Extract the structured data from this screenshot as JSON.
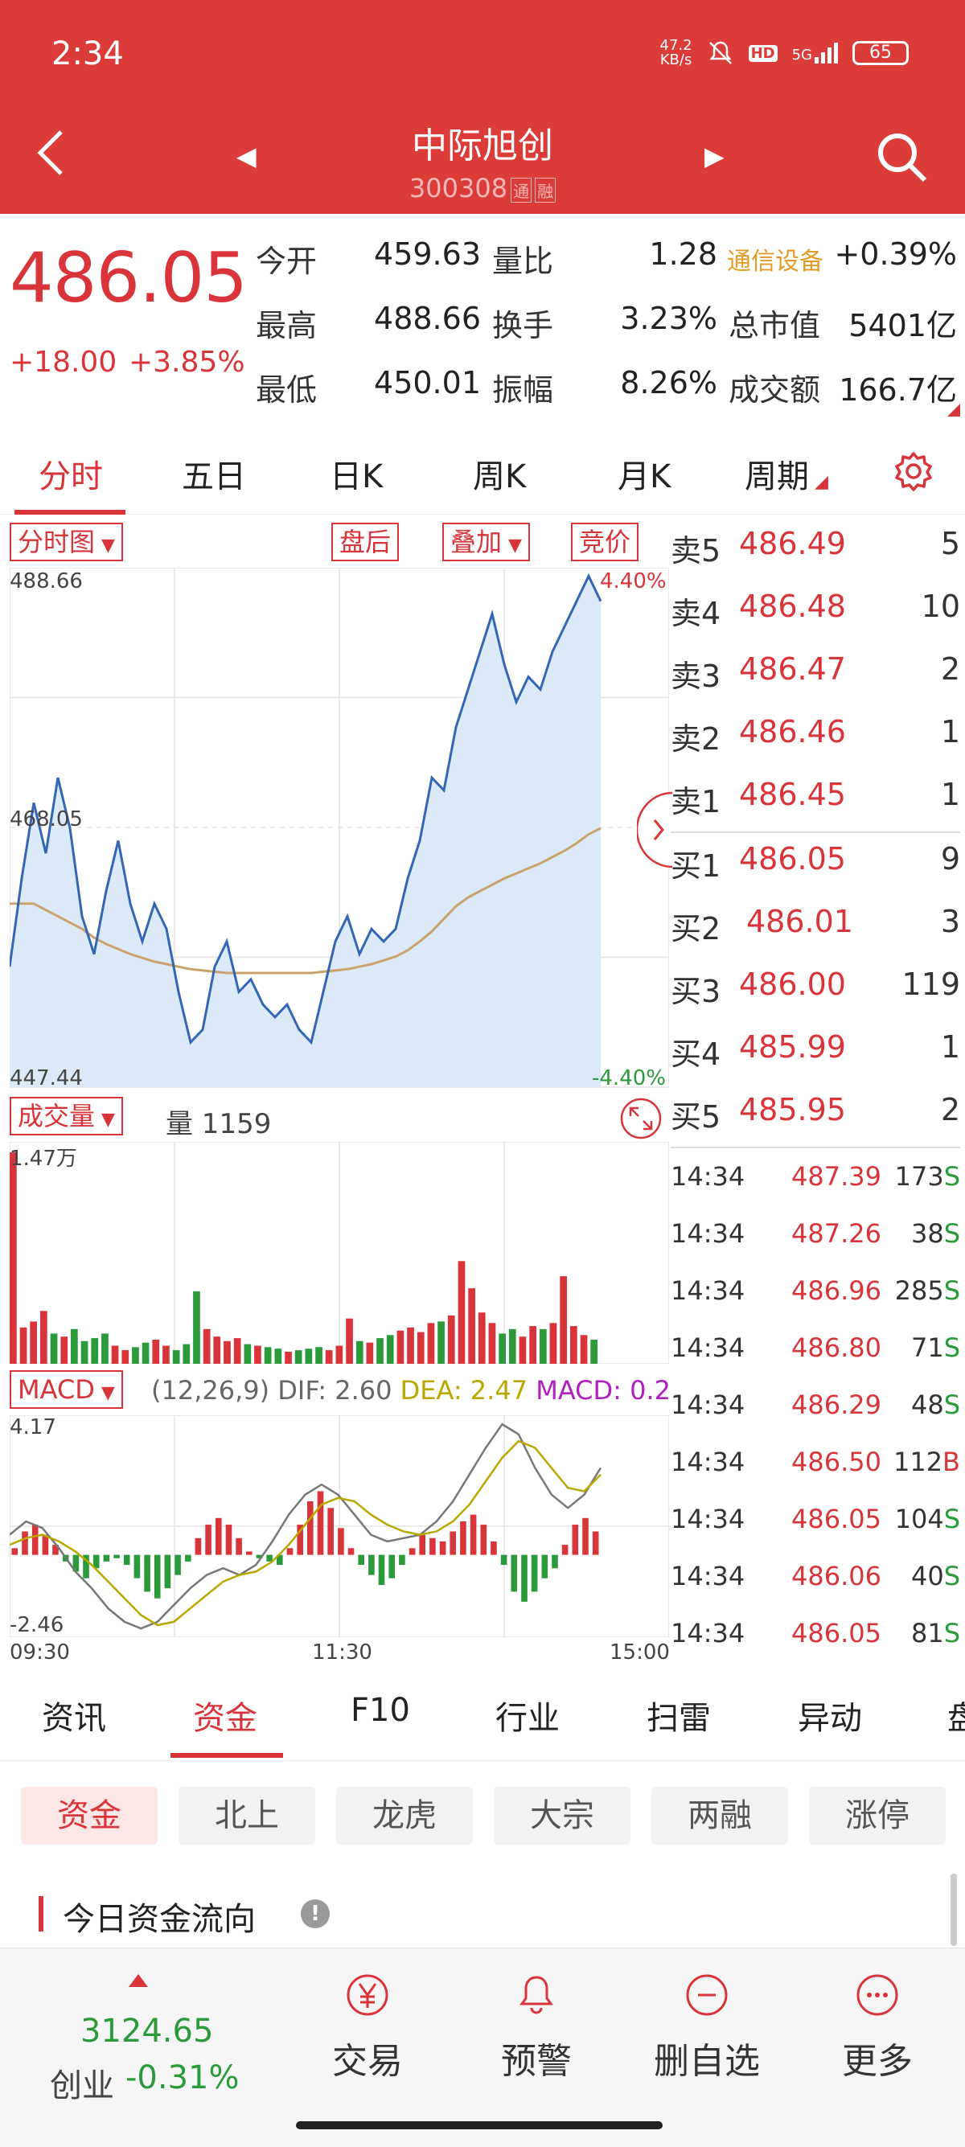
{
  "status_bar": {
    "time": "2:34",
    "speed": "47.2\nKB/s",
    "hd": "HD",
    "network": "5G",
    "battery": "65"
  },
  "header": {
    "name": "中际旭创",
    "code": "300308",
    "code_tags": [
      "通",
      "融"
    ]
  },
  "quote": {
    "price": "486.05",
    "change_abs": "+18.00",
    "change_pct": "+3.85%",
    "industry": "通信设备",
    "industry_change": "+0.39%",
    "rows": [
      {
        "l1": "今开",
        "v1": "459.63",
        "l2": "量比",
        "v2": "1.28"
      },
      {
        "l1": "最高",
        "v1": "488.66",
        "l2": "换手",
        "v2": "3.23%",
        "l3": "总市值",
        "v3": "5401亿"
      },
      {
        "l1": "最低",
        "v1": "450.01",
        "l2": "振幅",
        "v2": "8.26%",
        "l3": "成交额",
        "v3": "166.7亿"
      }
    ]
  },
  "period_tabs": [
    "分时",
    "五日",
    "日K",
    "周K",
    "月K",
    "周期"
  ],
  "chart_controls": {
    "chart_type": "分时图",
    "after_hours": "盘后",
    "overlay": "叠加",
    "auction": "竞价",
    "volume": "成交量",
    "volume_value": "量 1159",
    "macd": "MACD",
    "macd_params": "(12,26,9)",
    "dif": "DIF: 2.60",
    "dea": "DEA: 2.47",
    "macd_val": "MACD: 0.2"
  },
  "colors": {
    "accent": "#dc3c39",
    "up": "#d9343a",
    "down": "#2a9a3a",
    "avg_line": "#c8a46c",
    "dea": "#b8a800",
    "macd_text": "#b020c0"
  },
  "chart_data": [
    {
      "type": "line",
      "title": "分时图",
      "y_ticks": {
        "top": "488.66",
        "mid": "468.05",
        "bottom": "447.44"
      },
      "pct_ticks": {
        "top": "4.40%",
        "bottom": "-4.40%"
      },
      "x_ticks": [
        "09:30",
        "11:30",
        "15:00"
      ],
      "ylim": [
        447.44,
        488.66
      ],
      "series": [
        {
          "values": [
            457,
            464,
            470,
            466,
            472,
            468,
            461,
            458,
            463,
            467,
            462,
            459,
            462,
            460,
            455,
            451,
            452,
            457,
            459,
            455,
            456,
            454,
            453,
            454,
            452,
            451,
            455,
            459,
            461,
            458,
            460,
            459,
            460,
            464,
            467,
            472,
            471,
            476,
            479,
            482,
            485,
            481,
            478,
            480,
            479,
            482,
            484,
            486,
            488,
            486
          ]
        },
        {
          "values": [
            462,
            462,
            462,
            461.5,
            461,
            460.5,
            460,
            459.3,
            458.8,
            458.4,
            458,
            457.7,
            457.4,
            457.2,
            457,
            456.8,
            456.7,
            456.6,
            456.5,
            456.5,
            456.5,
            456.5,
            456.5,
            456.5,
            456.5,
            456.5,
            456.6,
            456.7,
            456.8,
            457,
            457.2,
            457.5,
            457.8,
            458.3,
            459,
            459.8,
            460.8,
            461.8,
            462.5,
            463,
            463.5,
            464,
            464.4,
            464.8,
            465.2,
            465.7,
            466.2,
            466.8,
            467.5,
            468
          ]
        }
      ]
    },
    {
      "type": "bar",
      "title": "成交量",
      "y_ticks": {
        "top": "1.47万"
      },
      "ylim": [
        0,
        14700
      ],
      "values": [
        14000,
        2400,
        2800,
        3500,
        2000,
        1800,
        2300,
        1500,
        1700,
        2000,
        1200,
        900,
        1100,
        1400,
        1600,
        1200,
        900,
        1300,
        4800,
        2300,
        1800,
        1500,
        1700,
        1300,
        1200,
        1100,
        1000,
        800,
        900,
        1000,
        1100,
        900,
        1200,
        3000,
        1500,
        1400,
        1700,
        1900,
        2200,
        2400,
        2100,
        2700,
        2800,
        3200,
        6800,
        5000,
        3400,
        2700,
        2000,
        2300,
        1800,
        2500,
        2300,
        2700,
        5800,
        2500,
        1900,
        1600
      ]
    },
    {
      "type": "bar",
      "title": "MACD",
      "y_ticks": {
        "top": "4.17",
        "bottom": "-2.46"
      },
      "ylim": [
        -2.46,
        4.17
      ],
      "values": [
        0.2,
        0.7,
        0.9,
        0.6,
        0.3,
        -0.2,
        -0.5,
        -0.7,
        -0.4,
        -0.2,
        -0.1,
        -0.3,
        -0.7,
        -1.1,
        -1.3,
        -1.0,
        -0.6,
        -0.2,
        0.5,
        0.9,
        1.1,
        0.9,
        0.5,
        0.1,
        -0.1,
        -0.2,
        -0.3,
        0.2,
        0.9,
        1.6,
        1.9,
        1.4,
        0.8,
        0.2,
        -0.3,
        -0.6,
        -0.9,
        -0.7,
        -0.3,
        0.2,
        0.6,
        0.5,
        0.4,
        0.7,
        1.0,
        1.2,
        0.9,
        0.4,
        -0.3,
        -1.1,
        -1.4,
        -1.1,
        -0.7,
        -0.4,
        0.3,
        0.9,
        1.1,
        0.7
      ],
      "series": [
        {
          "name": "DIF",
          "values": [
            0.6,
            1.0,
            0.8,
            0.2,
            -0.5,
            -1.0,
            -1.6,
            -2.0,
            -2.2,
            -2.0,
            -1.5,
            -1.0,
            -0.6,
            -0.4,
            -0.6,
            -0.3,
            0.4,
            1.2,
            1.8,
            2.1,
            1.8,
            1.2,
            0.6,
            0.4,
            0.5,
            0.6,
            1.0,
            1.6,
            2.4,
            3.2,
            3.9,
            3.6,
            2.6,
            1.8,
            1.4,
            1.8,
            2.6
          ]
        },
        {
          "name": "DEA",
          "values": [
            0.3,
            0.5,
            0.6,
            0.4,
            0.1,
            -0.3,
            -0.8,
            -1.3,
            -1.8,
            -2.1,
            -2.0,
            -1.6,
            -1.2,
            -0.8,
            -0.6,
            -0.5,
            -0.2,
            0.3,
            0.9,
            1.5,
            1.7,
            1.6,
            1.2,
            0.9,
            0.7,
            0.6,
            0.7,
            1.0,
            1.5,
            2.2,
            2.9,
            3.4,
            3.2,
            2.6,
            2.0,
            1.9,
            2.4
          ]
        }
      ]
    }
  ],
  "order_book": {
    "asks": [
      {
        "label": "卖5",
        "price": "486.49",
        "vol": "5"
      },
      {
        "label": "卖4",
        "price": "486.48",
        "vol": "10"
      },
      {
        "label": "卖3",
        "price": "486.47",
        "vol": "2"
      },
      {
        "label": "卖2",
        "price": "486.46",
        "vol": "1"
      },
      {
        "label": "卖1",
        "price": "486.45",
        "vol": "1"
      }
    ],
    "bids": [
      {
        "label": "买1",
        "price": "486.05",
        "vol": "9"
      },
      {
        "label": "买2",
        "price": "486.01",
        "vol": "3"
      },
      {
        "label": "买3",
        "price": "486.00",
        "vol": "119"
      },
      {
        "label": "买4",
        "price": "485.99",
        "vol": "1"
      },
      {
        "label": "买5",
        "price": "485.95",
        "vol": "2"
      }
    ]
  },
  "trades": [
    {
      "time": "14:34",
      "price": "487.39",
      "vol": "173",
      "side": "S"
    },
    {
      "time": "14:34",
      "price": "487.26",
      "vol": "38",
      "side": "S"
    },
    {
      "time": "14:34",
      "price": "486.96",
      "vol": "285",
      "side": "S"
    },
    {
      "time": "14:34",
      "price": "486.80",
      "vol": "71",
      "side": "S"
    },
    {
      "time": "14:34",
      "price": "486.29",
      "vol": "48",
      "side": "S"
    },
    {
      "time": "14:34",
      "price": "486.50",
      "vol": "112",
      "side": "B"
    },
    {
      "time": "14:34",
      "price": "486.05",
      "vol": "104",
      "side": "S"
    },
    {
      "time": "14:34",
      "price": "486.06",
      "vol": "40",
      "side": "S"
    },
    {
      "time": "14:34",
      "price": "486.05",
      "vol": "81",
      "side": "S"
    }
  ],
  "news_tabs": [
    "资讯",
    "资金",
    "F10",
    "行业",
    "扫雷",
    "异动",
    "盘"
  ],
  "fund_chips": [
    "资金",
    "北上",
    "龙虎",
    "大宗",
    "两融",
    "涨停"
  ],
  "flow_title": "今日资金流向",
  "bottom_bar": {
    "index_value": "3124.65",
    "index_name": "创业",
    "index_change": "-0.31%",
    "buttons": [
      "交易",
      "预警",
      "删自选",
      "更多"
    ]
  }
}
